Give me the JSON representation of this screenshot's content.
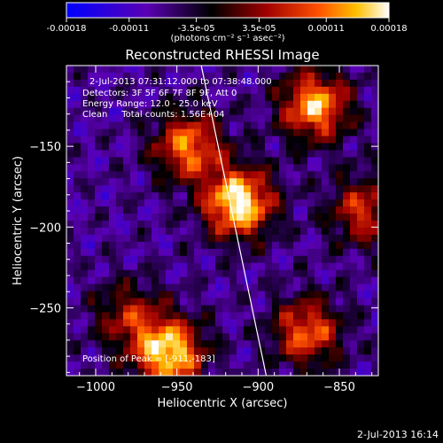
{
  "chart_data": {
    "type": "heatmap",
    "title": "Reconstructed RHESSI Image",
    "xlabel": "Heliocentric X (arcsec)",
    "ylabel": "Heliocentric Y (arcsec)",
    "xlim": [
      -1018,
      -826
    ],
    "ylim": [
      -292,
      -100
    ],
    "x_ticks": [
      -1000,
      -950,
      -900,
      -850
    ],
    "y_ticks": [
      -150,
      -200,
      -250
    ],
    "colorbar": {
      "unit_label": "(photons cm⁻² s⁻¹ asec⁻²)",
      "ticks": [
        "-0.00018",
        "-0.00011",
        "-3.5e-05",
        "3.5e-05",
        "0.00011",
        "0.00018"
      ],
      "range": [
        -0.00018,
        0.00018
      ]
    },
    "annotations": {
      "time_range": "2-Jul-2013 07:31:12.000 to 07:38:48.000",
      "detectors": "Detectors: 3F 5F 6F 7F 8F 9F, Att 0",
      "energy": "Energy Range: 12.0 - 25.0 keV",
      "clean": "Clean     Total counts: 1.56E+04",
      "peak": "Position of Peak = [-911,-183]"
    },
    "peak_position": [
      -911,
      -183
    ],
    "limb_line": {
      "x": [
        -935,
        -895
      ],
      "y": [
        -100,
        -292
      ]
    },
    "bright_sources": [
      {
        "x": -912,
        "y": -185,
        "value": 0.00018
      },
      {
        "x": -943,
        "y": -150,
        "value": 0.00013
      },
      {
        "x": -865,
        "y": -125,
        "value": 0.00015
      },
      {
        "x": -955,
        "y": -278,
        "value": 0.00017
      },
      {
        "x": -870,
        "y": -265,
        "value": 0.00012
      },
      {
        "x": -835,
        "y": -190,
        "value": 0.0001
      },
      {
        "x": -980,
        "y": -255,
        "value": 8e-05
      }
    ]
  },
  "timestamp": "2-Jul-2013 16:14",
  "colors": {
    "background": "#000000",
    "text": "#ffffff"
  }
}
